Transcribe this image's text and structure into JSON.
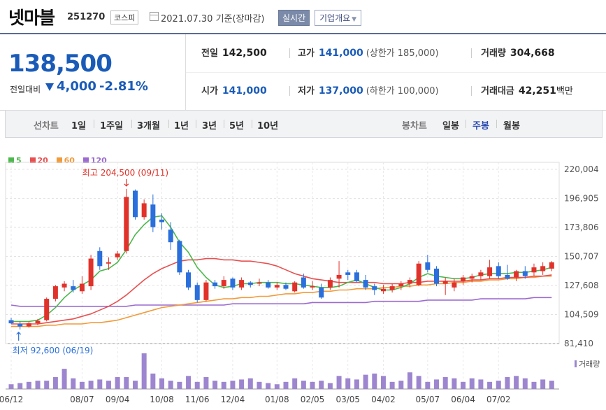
{
  "header": {
    "stock_name": "넷마블",
    "stock_code": "251270",
    "market": "코스피",
    "date_text": "2021.07.30 기준(장마감)",
    "realtime_label": "실시간",
    "company_info_label": "기업개요"
  },
  "summary": {
    "price": "138,500",
    "change_label": "전일대비",
    "change": "4,000",
    "change_pct": "-2.81%",
    "prev_close_label": "전일",
    "prev_close": "142,500",
    "high_label": "고가",
    "high": "141,000",
    "upper_limit": "(상한가 185,000)",
    "volume_label": "거래량",
    "volume": "304,668",
    "open_label": "시가",
    "open": "141,000",
    "low_label": "저가",
    "low": "137,000",
    "lower_limit": "(하한가 100,000)",
    "amount_label": "거래대금",
    "amount": "42,251",
    "amount_unit": "백만"
  },
  "period_bar": {
    "line_label": "선차트",
    "line_options": [
      "1일",
      "1주일",
      "3개월",
      "1년",
      "3년",
      "5년",
      "10년"
    ],
    "candle_label": "봉차트",
    "candle_options": [
      "일봉",
      "주봉",
      "월봉"
    ],
    "selected_candle": "주봉"
  },
  "colors": {
    "up": "#e0322a",
    "down": "#2a6fdb",
    "ma5": "#4cb84c",
    "ma20": "#e85050",
    "ma60": "#f29a3a",
    "ma120": "#9c6ad0",
    "volume": "#9d86cf"
  },
  "chart_data": {
    "type": "candlestick",
    "legend": [
      {
        "name": "5",
        "color": "#4cb84c"
      },
      {
        "name": "20",
        "color": "#e85050"
      },
      {
        "name": "60",
        "color": "#f29a3a"
      },
      {
        "name": "120",
        "color": "#9c6ad0"
      }
    ],
    "y_ticks": [
      "220,004",
      "196,905",
      "173,806",
      "150,707",
      "127,608",
      "104,509",
      "81,410"
    ],
    "ylim": [
      81410,
      220004
    ],
    "x_ticks": [
      "06/12",
      "08/07",
      "09/04",
      "10/08",
      "11/06",
      "12/04",
      "01/08",
      "02/05",
      "03/05",
      "04/02",
      "05/07",
      "06/04",
      "07/02"
    ],
    "x_tick_index": [
      0,
      8,
      12,
      17,
      21,
      25,
      30,
      34,
      38,
      42,
      47,
      51,
      55
    ],
    "max_annotation": "최고 204,500 (09/11)",
    "min_annotation": "최저 92,600 (06/19)",
    "volume_label": "거래량",
    "candles": [
      {
        "o": 100000,
        "h": 102000,
        "l": 97000,
        "c": 97500
      },
      {
        "o": 97000,
        "h": 99000,
        "l": 92600,
        "c": 95000
      },
      {
        "o": 95000,
        "h": 99000,
        "l": 94000,
        "c": 97500
      },
      {
        "o": 97500,
        "h": 101000,
        "l": 96000,
        "c": 99500
      },
      {
        "o": 100000,
        "h": 118000,
        "l": 99000,
        "c": 117000
      },
      {
        "o": 117000,
        "h": 128000,
        "l": 115000,
        "c": 127000
      },
      {
        "o": 126000,
        "h": 131000,
        "l": 123000,
        "c": 129000
      },
      {
        "o": 127000,
        "h": 132000,
        "l": 122000,
        "c": 124000
      },
      {
        "o": 123000,
        "h": 135000,
        "l": 121000,
        "c": 129000
      },
      {
        "o": 127000,
        "h": 152000,
        "l": 124000,
        "c": 149000
      },
      {
        "o": 155000,
        "h": 158000,
        "l": 140000,
        "c": 143000
      },
      {
        "o": 145000,
        "h": 150000,
        "l": 140000,
        "c": 146000
      },
      {
        "o": 150000,
        "h": 155000,
        "l": 148000,
        "c": 153000
      },
      {
        "o": 155000,
        "h": 204500,
        "l": 153000,
        "c": 198000
      },
      {
        "o": 203000,
        "h": 204000,
        "l": 180000,
        "c": 182000
      },
      {
        "o": 182000,
        "h": 196000,
        "l": 180000,
        "c": 193000
      },
      {
        "o": 192000,
        "h": 200000,
        "l": 170000,
        "c": 174000
      },
      {
        "o": 180000,
        "h": 185000,
        "l": 172000,
        "c": 178000
      },
      {
        "o": 172000,
        "h": 178000,
        "l": 156000,
        "c": 162000
      },
      {
        "o": 163000,
        "h": 164000,
        "l": 136000,
        "c": 138000
      },
      {
        "o": 138000,
        "h": 140000,
        "l": 124000,
        "c": 126000
      },
      {
        "o": 128000,
        "h": 130000,
        "l": 114000,
        "c": 116000
      },
      {
        "o": 116000,
        "h": 132000,
        "l": 115000,
        "c": 130000
      },
      {
        "o": 130000,
        "h": 132000,
        "l": 125000,
        "c": 127000
      },
      {
        "o": 127000,
        "h": 135000,
        "l": 125000,
        "c": 132000
      },
      {
        "o": 133000,
        "h": 134000,
        "l": 124000,
        "c": 126000
      },
      {
        "o": 126000,
        "h": 134000,
        "l": 124000,
        "c": 132000
      },
      {
        "o": 130000,
        "h": 131000,
        "l": 126000,
        "c": 128000
      },
      {
        "o": 129000,
        "h": 133000,
        "l": 127000,
        "c": 130000
      },
      {
        "o": 130000,
        "h": 132000,
        "l": 125000,
        "c": 126000
      },
      {
        "o": 126000,
        "h": 130000,
        "l": 124000,
        "c": 128000
      },
      {
        "o": 128000,
        "h": 130000,
        "l": 124000,
        "c": 125000
      },
      {
        "o": 123000,
        "h": 131000,
        "l": 122000,
        "c": 130000
      },
      {
        "o": 134000,
        "h": 137000,
        "l": 125000,
        "c": 126000
      },
      {
        "o": 126000,
        "h": 131000,
        "l": 124000,
        "c": 127000
      },
      {
        "o": 126000,
        "h": 129000,
        "l": 117000,
        "c": 118000
      },
      {
        "o": 126000,
        "h": 134000,
        "l": 124000,
        "c": 132000
      },
      {
        "o": 133000,
        "h": 147000,
        "l": 126000,
        "c": 136000
      },
      {
        "o": 138000,
        "h": 140000,
        "l": 132000,
        "c": 136000
      },
      {
        "o": 138000,
        "h": 140000,
        "l": 130000,
        "c": 131000
      },
      {
        "o": 132000,
        "h": 136000,
        "l": 124000,
        "c": 126000
      },
      {
        "o": 127000,
        "h": 129000,
        "l": 120000,
        "c": 124000
      },
      {
        "o": 123000,
        "h": 128000,
        "l": 121000,
        "c": 125000
      },
      {
        "o": 124000,
        "h": 129000,
        "l": 122000,
        "c": 127000
      },
      {
        "o": 127000,
        "h": 131000,
        "l": 124000,
        "c": 129000
      },
      {
        "o": 129000,
        "h": 134000,
        "l": 126000,
        "c": 132000
      },
      {
        "o": 128000,
        "h": 147000,
        "l": 127000,
        "c": 145000
      },
      {
        "o": 146000,
        "h": 152000,
        "l": 138000,
        "c": 140000
      },
      {
        "o": 141000,
        "h": 143000,
        "l": 127000,
        "c": 129000
      },
      {
        "o": 129000,
        "h": 134000,
        "l": 120000,
        "c": 131000
      },
      {
        "o": 126000,
        "h": 133000,
        "l": 123000,
        "c": 130000
      },
      {
        "o": 131000,
        "h": 136000,
        "l": 128000,
        "c": 134000
      },
      {
        "o": 133000,
        "h": 137000,
        "l": 130000,
        "c": 135000
      },
      {
        "o": 135000,
        "h": 140000,
        "l": 132000,
        "c": 138000
      },
      {
        "o": 135000,
        "h": 148000,
        "l": 133000,
        "c": 142000
      },
      {
        "o": 143000,
        "h": 146000,
        "l": 133000,
        "c": 135000
      },
      {
        "o": 136000,
        "h": 144000,
        "l": 132000,
        "c": 133000
      },
      {
        "o": 134000,
        "h": 140000,
        "l": 131000,
        "c": 139000
      },
      {
        "o": 139000,
        "h": 143000,
        "l": 133000,
        "c": 135000
      },
      {
        "o": 138000,
        "h": 145000,
        "l": 135000,
        "c": 142000
      },
      {
        "o": 139000,
        "h": 146000,
        "l": 136000,
        "c": 143000
      },
      {
        "o": 141000,
        "h": 147000,
        "l": 139000,
        "c": 146000
      }
    ],
    "ma5": [
      99000,
      99000,
      99000,
      100000,
      104000,
      110000,
      118000,
      124000,
      128000,
      132000,
      139000,
      141000,
      146000,
      156000,
      168000,
      176000,
      182000,
      183000,
      174000,
      162000,
      154000,
      142000,
      134000,
      128000,
      126000,
      127000,
      129000,
      129000,
      130000,
      130000,
      130000,
      129000,
      129000,
      128000,
      127000,
      126000,
      126000,
      127000,
      130000,
      132000,
      129000,
      126000,
      124000,
      124000,
      126000,
      129000,
      134000,
      137000,
      135000,
      134000,
      133000,
      133000,
      134000,
      136000,
      137000,
      137000,
      137000,
      138000,
      138000,
      139000,
      140000,
      142000
    ],
    "ma20": [
      97000,
      97000,
      97000,
      97000,
      98000,
      99000,
      100000,
      101000,
      103000,
      105000,
      108000,
      111000,
      115000,
      120000,
      126000,
      132000,
      137000,
      141000,
      144000,
      147000,
      148000,
      148000,
      149000,
      149000,
      148000,
      148000,
      147000,
      147000,
      146000,
      145000,
      143000,
      140000,
      137000,
      135000,
      133000,
      132000,
      131000,
      130000,
      130000,
      130000,
      130000,
      130000,
      129000,
      129000,
      129000,
      130000,
      130000,
      131000,
      131000,
      131000,
      131000,
      131000,
      132000,
      132000,
      133000,
      133000,
      134000,
      134000,
      134000,
      135000,
      135000,
      136000
    ],
    "ma60": [
      95000,
      95000,
      95000,
      95000,
      96000,
      96000,
      97000,
      97000,
      97000,
      98000,
      98000,
      99000,
      100000,
      102000,
      104000,
      106000,
      108000,
      110000,
      111000,
      112000,
      113000,
      114000,
      115000,
      116000,
      117000,
      117000,
      118000,
      118000,
      119000,
      119000,
      120000,
      121000,
      121000,
      122000,
      122000,
      123000,
      123000,
      124000,
      124000,
      125000,
      125000,
      125000,
      126000,
      126000,
      127000,
      127000,
      128000,
      128000,
      129000,
      129000,
      130000,
      130000,
      131000,
      131000,
      132000,
      132000,
      133000,
      133000,
      134000,
      134000,
      135000,
      135000
    ],
    "ma120": [
      112000,
      111000,
      111000,
      111000,
      111000,
      111000,
      111000,
      111000,
      111000,
      111000,
      111000,
      111000,
      111000,
      111000,
      112000,
      112000,
      112000,
      112000,
      112000,
      112000,
      112000,
      112000,
      112000,
      112000,
      112000,
      113000,
      113000,
      113000,
      113000,
      113000,
      113000,
      113000,
      113000,
      113000,
      114000,
      114000,
      114000,
      114000,
      114000,
      114000,
      114000,
      115000,
      115000,
      115000,
      115000,
      115000,
      115000,
      116000,
      116000,
      116000,
      116000,
      116000,
      116000,
      117000,
      117000,
      117000,
      117000,
      117000,
      117000,
      118000,
      118000,
      118000
    ],
    "volume": [
      8,
      10,
      12,
      14,
      14,
      20,
      34,
      18,
      12,
      14,
      16,
      14,
      20,
      20,
      14,
      60,
      26,
      18,
      14,
      12,
      22,
      12,
      20,
      14,
      12,
      14,
      16,
      18,
      12,
      10,
      8,
      12,
      18,
      14,
      12,
      14,
      10,
      22,
      18,
      16,
      24,
      26,
      22,
      12,
      14,
      28,
      22,
      12,
      16,
      20,
      18,
      12,
      18,
      16,
      12,
      14,
      20,
      22,
      18,
      12,
      16,
      14
    ]
  }
}
